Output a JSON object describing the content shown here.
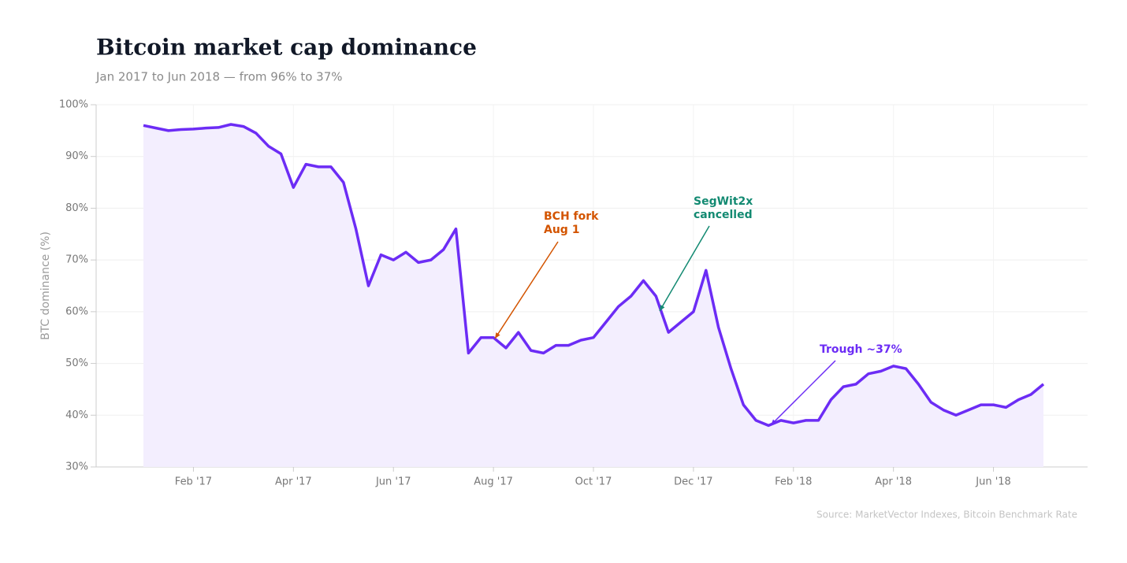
{
  "chart_data": {
    "type": "line",
    "title": "Bitcoin market cap dominance",
    "subtitle": "Jan 2017 to Jun 2018 — from 96% to 37%",
    "y_label": "BTC dominance (%)",
    "source": "Source: MarketVector Indexes, Bitcoin Benchmark Rate",
    "categories": [
      null,
      null,
      null,
      null,
      "Feb '17",
      null,
      null,
      null,
      null,
      null,
      null,
      null,
      "Apr '17",
      null,
      null,
      null,
      null,
      null,
      null,
      null,
      "Jun '17",
      null,
      null,
      null,
      null,
      null,
      null,
      null,
      "Aug '17",
      null,
      null,
      null,
      null,
      null,
      null,
      null,
      "Oct '17",
      null,
      null,
      null,
      null,
      null,
      null,
      null,
      "Dec '17",
      null,
      null,
      null,
      null,
      null,
      null,
      null,
      "Feb '18",
      null,
      null,
      null,
      null,
      null,
      null,
      null,
      "Apr '18",
      null,
      null,
      null,
      null,
      null,
      null,
      null,
      "Jun '18",
      null,
      null,
      null,
      null
    ],
    "series": [
      {
        "name": "BTC dominance",
        "color": "#6c2cf5",
        "fill": "#f3eefe",
        "values": [
          96,
          95.5,
          95,
          95.2,
          95.3,
          95.5,
          95.6,
          96.2,
          95.8,
          94.5,
          92,
          90.5,
          84,
          88.5,
          88,
          88,
          85,
          76,
          65,
          71,
          70,
          71.5,
          69.5,
          70,
          72,
          76,
          52,
          55,
          55,
          53,
          56,
          52.5,
          52,
          53.5,
          53.5,
          54.5,
          55,
          58,
          61,
          63,
          66,
          63,
          56,
          58,
          60,
          68,
          57,
          49,
          42,
          39,
          38,
          39,
          38.5,
          39,
          39,
          43,
          45.5,
          46,
          48,
          48.5,
          49.5,
          49,
          46,
          42.5,
          41,
          40,
          41,
          42,
          42,
          41.5,
          43,
          44,
          46
        ]
      }
    ],
    "ylim": [
      30,
      100
    ],
    "yticks": [
      {
        "value": 30,
        "label": "30%"
      },
      {
        "value": 40,
        "label": "40%"
      },
      {
        "value": 50,
        "label": "50%"
      },
      {
        "value": 60,
        "label": "60%"
      },
      {
        "value": 70,
        "label": "70%"
      },
      {
        "value": 80,
        "label": "80%"
      },
      {
        "value": 90,
        "label": "90%"
      },
      {
        "value": 100,
        "label": "100%"
      }
    ],
    "grid": true,
    "annotations": [
      {
        "text": [
          "BCH fork",
          "Aug 1"
        ],
        "color": "#d35400"
      },
      {
        "text": [
          "SegWit2x",
          "cancelled"
        ],
        "color": "#138a72"
      },
      {
        "text": [
          "Trough ~37%"
        ],
        "color": "#6c2cf5"
      }
    ]
  }
}
